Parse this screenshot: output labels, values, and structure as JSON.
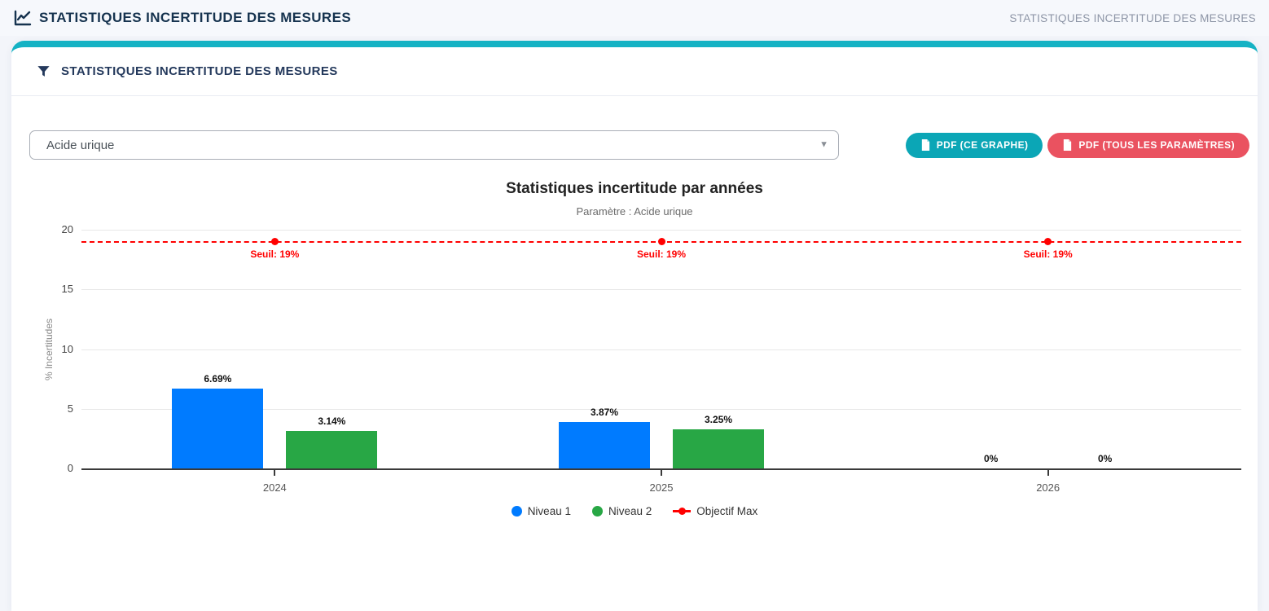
{
  "app": {
    "header_title": "STATISTIQUES INCERTITUDE DES MESURES",
    "breadcrumb": "STATISTIQUES INCERTITUDE DES MESURES"
  },
  "card": {
    "title": "STATISTIQUES INCERTITUDE DES MESURES",
    "parameter_select": {
      "value": "Acide urique"
    },
    "buttons": [
      {
        "label": "PDF (CE GRAPHE)",
        "color": "#0ba6b6"
      },
      {
        "label": "PDF (TOUS LES PARAMÈTRES)",
        "color": "#ea5260"
      }
    ]
  },
  "chart_data": {
    "type": "bar",
    "title": "Statistiques incertitude par années",
    "subtitle": "Paramètre : Acide urique",
    "ylabel": "% Incertitudes",
    "ylim": [
      0,
      20
    ],
    "yticks": [
      0,
      5,
      10,
      15,
      20
    ],
    "grid": true,
    "legend_position": "bottom",
    "categories": [
      "2024",
      "2025",
      "2026"
    ],
    "series": [
      {
        "name": "Niveau 1",
        "color": "#007bff",
        "values": [
          6.69,
          3.87,
          0
        ],
        "labels": [
          "6.69%",
          "3.87%",
          "0%"
        ]
      },
      {
        "name": "Niveau 2",
        "color": "#28a745",
        "values": [
          3.14,
          3.25,
          0
        ],
        "labels": [
          "3.14%",
          "3.25%",
          "0%"
        ]
      }
    ],
    "threshold": {
      "name": "Objectif Max",
      "value": 19,
      "label": "Seuil: 19%",
      "color": "#ff0000"
    }
  }
}
